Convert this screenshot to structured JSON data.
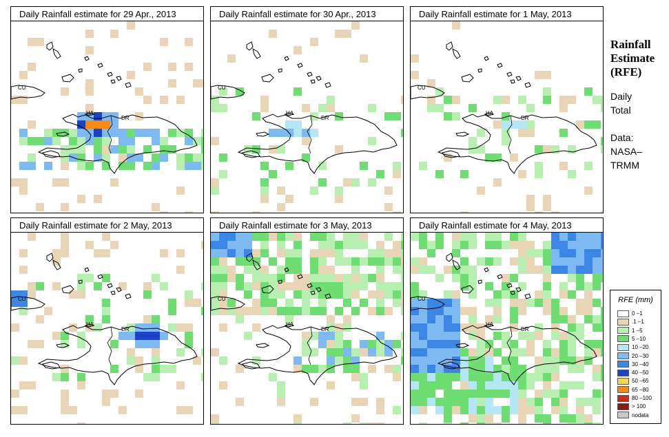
{
  "panels": [
    {
      "title": "Daily Rainfall estimate for  29 Apr., 2013"
    },
    {
      "title": "Daily Rainfall estimate for  30 Apr., 2013"
    },
    {
      "title": "Daily Rainfall estimate for  1 May, 2013"
    },
    {
      "title": "Daily Rainfall estimate for  2 May, 2013"
    },
    {
      "title": "Daily Rainfall estimate for  3 May, 2013"
    },
    {
      "title": "Daily Rainfall estimate for  4 May, 2013"
    }
  ],
  "map_labels": {
    "cuba": "CU",
    "haiti": "HA",
    "dominican_republic": "DR"
  },
  "side": {
    "title_line1": "Rainfall",
    "title_line2": "Estimate",
    "title_line3": "(RFE)",
    "period_line1": "Daily",
    "period_line2": "Total",
    "data_line1": "Data:",
    "data_line2": "NASA–",
    "data_line3": "TRMM"
  },
  "legend": {
    "title": "RFE (mm)",
    "items": [
      {
        "label": "0 –1",
        "color": "#ffffff"
      },
      {
        "label": ".1 –1",
        "color": "#e8d5b5"
      },
      {
        "label": "1 –5",
        "color": "#b7efb0"
      },
      {
        "label": "5 –10",
        "color": "#6fde72"
      },
      {
        "label": "10 –20",
        "color": "#b4e6f6"
      },
      {
        "label": "20 –30",
        "color": "#7dbaf2"
      },
      {
        "label": "30 –40",
        "color": "#3c87e6"
      },
      {
        "label": "40 –50",
        "color": "#1b43c8"
      },
      {
        "label": "50 –65",
        "color": "#f5d64c"
      },
      {
        "label": "65 –80",
        "color": "#f58a10"
      },
      {
        "label": "80 –100",
        "color": "#d62810"
      },
      {
        "label": "> 100",
        "color": "#8b1a10"
      },
      {
        "label": "nodata",
        "color": "#c8c8c8"
      }
    ]
  }
}
